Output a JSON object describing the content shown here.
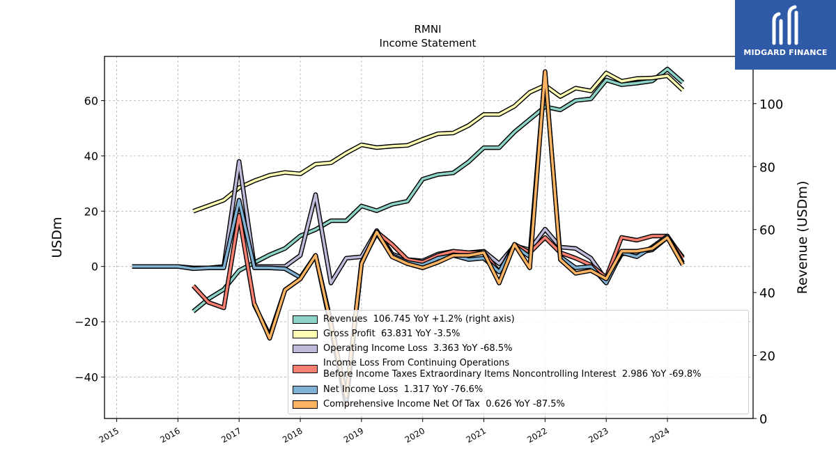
{
  "chart_data": {
    "type": "line",
    "title": "RMNI",
    "subtitle": "Income Statement",
    "ylabel": "USDm",
    "y2label": "Revenue (USDm)",
    "ylim": [
      -55,
      76
    ],
    "y2lim": [
      0,
      115
    ],
    "yticks": [
      -40,
      -20,
      0,
      20,
      40,
      60
    ],
    "y2ticks": [
      0,
      20,
      40,
      60,
      80,
      100
    ],
    "xlim": [
      2014.8,
      2025.4
    ],
    "xticks": [
      "2015",
      "2016",
      "2017",
      "2018",
      "2019",
      "2020",
      "2021",
      "2022",
      "2023",
      "2024"
    ],
    "grid": true,
    "legend_position": "lower-center",
    "series": [
      {
        "name": "Revenues",
        "legend": "Revenues  106.745 YoY +1.2% (right axis)",
        "axis": "right",
        "color": "#8dd3c7",
        "x": [
          2016.25,
          2016.5,
          2016.75,
          2017.0,
          2017.25,
          2017.5,
          2017.75,
          2018.0,
          2018.25,
          2018.5,
          2018.75,
          2019.0,
          2019.25,
          2019.5,
          2019.75,
          2020.0,
          2020.25,
          2020.5,
          2020.75,
          2021.0,
          2021.25,
          2021.5,
          2021.75,
          2022.0,
          2022.25,
          2022.5,
          2022.75,
          2023.0,
          2023.25,
          2023.5,
          2023.75,
          2024.0,
          2024.25
        ],
        "values": [
          34,
          38,
          41,
          47,
          49.5,
          52,
          54,
          58,
          60,
          62.8,
          62.8,
          67.5,
          66,
          68,
          69,
          76,
          77.5,
          78,
          81.5,
          86,
          86,
          91,
          95,
          99,
          98,
          101,
          101.5,
          107.5,
          106,
          106.5,
          107.2,
          111,
          106.7
        ]
      },
      {
        "name": "Gross Profit",
        "legend": "Gross Profit  63.831 YoY -3.5%",
        "axis": "left",
        "color": "#ffffb3",
        "x": [
          2016.25,
          2016.5,
          2016.75,
          2017.0,
          2017.25,
          2017.5,
          2017.75,
          2018.0,
          2018.25,
          2018.5,
          2018.75,
          2019.0,
          2019.25,
          2019.5,
          2019.75,
          2020.0,
          2020.25,
          2020.5,
          2020.75,
          2021.0,
          2021.25,
          2021.5,
          2021.75,
          2022.0,
          2022.25,
          2022.5,
          2022.75,
          2023.0,
          2023.25,
          2023.5,
          2023.75,
          2024.0,
          2024.25
        ],
        "values": [
          20,
          22,
          24,
          28.5,
          31,
          33,
          34,
          33.5,
          37,
          37.5,
          41,
          44,
          43,
          43.5,
          43.8,
          46,
          48,
          48.3,
          51,
          55,
          55,
          58,
          63,
          65.5,
          61.5,
          64.5,
          63.5,
          70,
          67,
          68,
          68.2,
          69,
          63.8
        ]
      },
      {
        "name": "Operating Income Loss",
        "legend": "Operating Income Loss  3.363 YoY -68.5%",
        "axis": "left",
        "color": "#bebada",
        "x": [
          2015.25,
          2015.5,
          2015.75,
          2016.0,
          2016.25,
          2016.5,
          2016.75,
          2017.0,
          2017.25,
          2017.5,
          2017.75,
          2018.0,
          2018.25,
          2018.5,
          2018.75,
          2019.0,
          2019.25,
          2019.5,
          2019.75,
          2020.0,
          2020.25,
          2020.5,
          2020.75,
          2021.0,
          2021.25,
          2021.5,
          2021.75,
          2022.0,
          2022.25,
          2022.5,
          2022.75,
          2023.0,
          2023.25,
          2023.5,
          2023.75,
          2024.0,
          2024.25
        ],
        "values": [
          0,
          0,
          0,
          0,
          -0.5,
          -0.5,
          0,
          38,
          0,
          0,
          0,
          4,
          26,
          -6,
          3,
          3.5,
          13,
          4.5,
          2.5,
          2,
          4.5,
          5.5,
          5,
          5.5,
          1,
          7.5,
          6,
          13.5,
          7,
          6.5,
          3,
          -5,
          4.5,
          5,
          6,
          10.5,
          3.4
        ]
      },
      {
        "name": "Income Loss From Continuing Operations Before Income Taxes Extraordinary Items Noncontrolling Interest",
        "legend": "Income Loss From Continuing Operations\nBefore Income Taxes Extraordinary Items Noncontrolling Interest  2.986 YoY -69.8%",
        "axis": "left",
        "color": "#fb8072",
        "x": [
          2016.25,
          2016.5,
          2016.75,
          2017.0,
          2017.25,
          2017.5,
          2017.75,
          2018.0,
          2018.25,
          2018.5,
          2018.75,
          2019.0,
          2019.25,
          2019.5,
          2019.75,
          2020.0,
          2020.25,
          2020.5,
          2020.75,
          2021.0,
          2021.25,
          2021.5,
          2021.75,
          2022.0,
          2022.25,
          2022.5,
          2022.75,
          2023.0,
          2023.25,
          2023.5,
          2023.75,
          2024.0,
          2024.25
        ],
        "values": [
          -7,
          -13,
          -15,
          18.5,
          -14,
          -25,
          -8.5,
          -4.5,
          4,
          -22,
          -50,
          1,
          12.5,
          8,
          2.5,
          1.5,
          4,
          5.5,
          5,
          5,
          -2,
          8,
          5,
          10.5,
          5,
          3,
          0.5,
          -4,
          10.5,
          9.5,
          11,
          11,
          3
        ]
      },
      {
        "name": "Net Income Loss",
        "legend": "Net Income Loss  1.317 YoY -76.6%",
        "axis": "left",
        "color": "#80b1d3",
        "x": [
          2015.25,
          2015.5,
          2015.75,
          2016.0,
          2016.25,
          2016.5,
          2016.75,
          2017.0,
          2017.25,
          2017.5,
          2017.75,
          2018.0,
          2018.25,
          2018.5,
          2018.75,
          2019.0,
          2019.25,
          2019.5,
          2019.75,
          2020.0,
          2020.25,
          2020.5,
          2020.75,
          2021.0,
          2021.25,
          2021.5,
          2021.75,
          2022.0,
          2022.25,
          2022.5,
          2022.75,
          2023.0,
          2023.25,
          2023.5,
          2023.75,
          2024.0,
          2024.25
        ],
        "values": [
          0,
          0,
          0,
          0,
          -0.8,
          -0.5,
          -0.5,
          24,
          -0.5,
          -0.5,
          -0.8,
          -4,
          4,
          -20,
          -48,
          1.5,
          12,
          4,
          1.5,
          0.5,
          3,
          4,
          2.5,
          3,
          -2,
          7.5,
          3.5,
          70,
          3.5,
          -0.5,
          0,
          -6,
          5,
          3.5,
          7,
          11,
          1.3
        ]
      },
      {
        "name": "Comprehensive Income Net Of Tax",
        "legend": "Comprehensive Income Net Of Tax  0.626 YoY -87.5%",
        "axis": "left",
        "color": "#fdb462",
        "x": [
          2017.25,
          2017.5,
          2017.75,
          2018.0,
          2018.25,
          2018.5,
          2018.75,
          2019.0,
          2019.25,
          2019.5,
          2019.75,
          2020.0,
          2020.25,
          2020.5,
          2020.75,
          2021.0,
          2021.25,
          2021.5,
          2021.75,
          2022.0,
          2022.25,
          2022.5,
          2022.75,
          2023.0,
          2023.25,
          2023.5,
          2023.75,
          2024.0,
          2024.25
        ],
        "values": [
          -13.5,
          -26,
          -8.5,
          -4.5,
          4,
          -21,
          -47,
          1,
          12.5,
          3.5,
          1,
          -0.5,
          1.5,
          4,
          4,
          5,
          -6,
          8,
          -0.5,
          70.5,
          2.5,
          -2.5,
          -1.5,
          -4.5,
          5.5,
          5.5,
          6.5,
          10.5,
          0.6
        ]
      }
    ]
  },
  "brand": {
    "name": "MIDGARD FINANCE",
    "color": "#2f5aa8"
  },
  "legend_frame": "#d0d0d0"
}
